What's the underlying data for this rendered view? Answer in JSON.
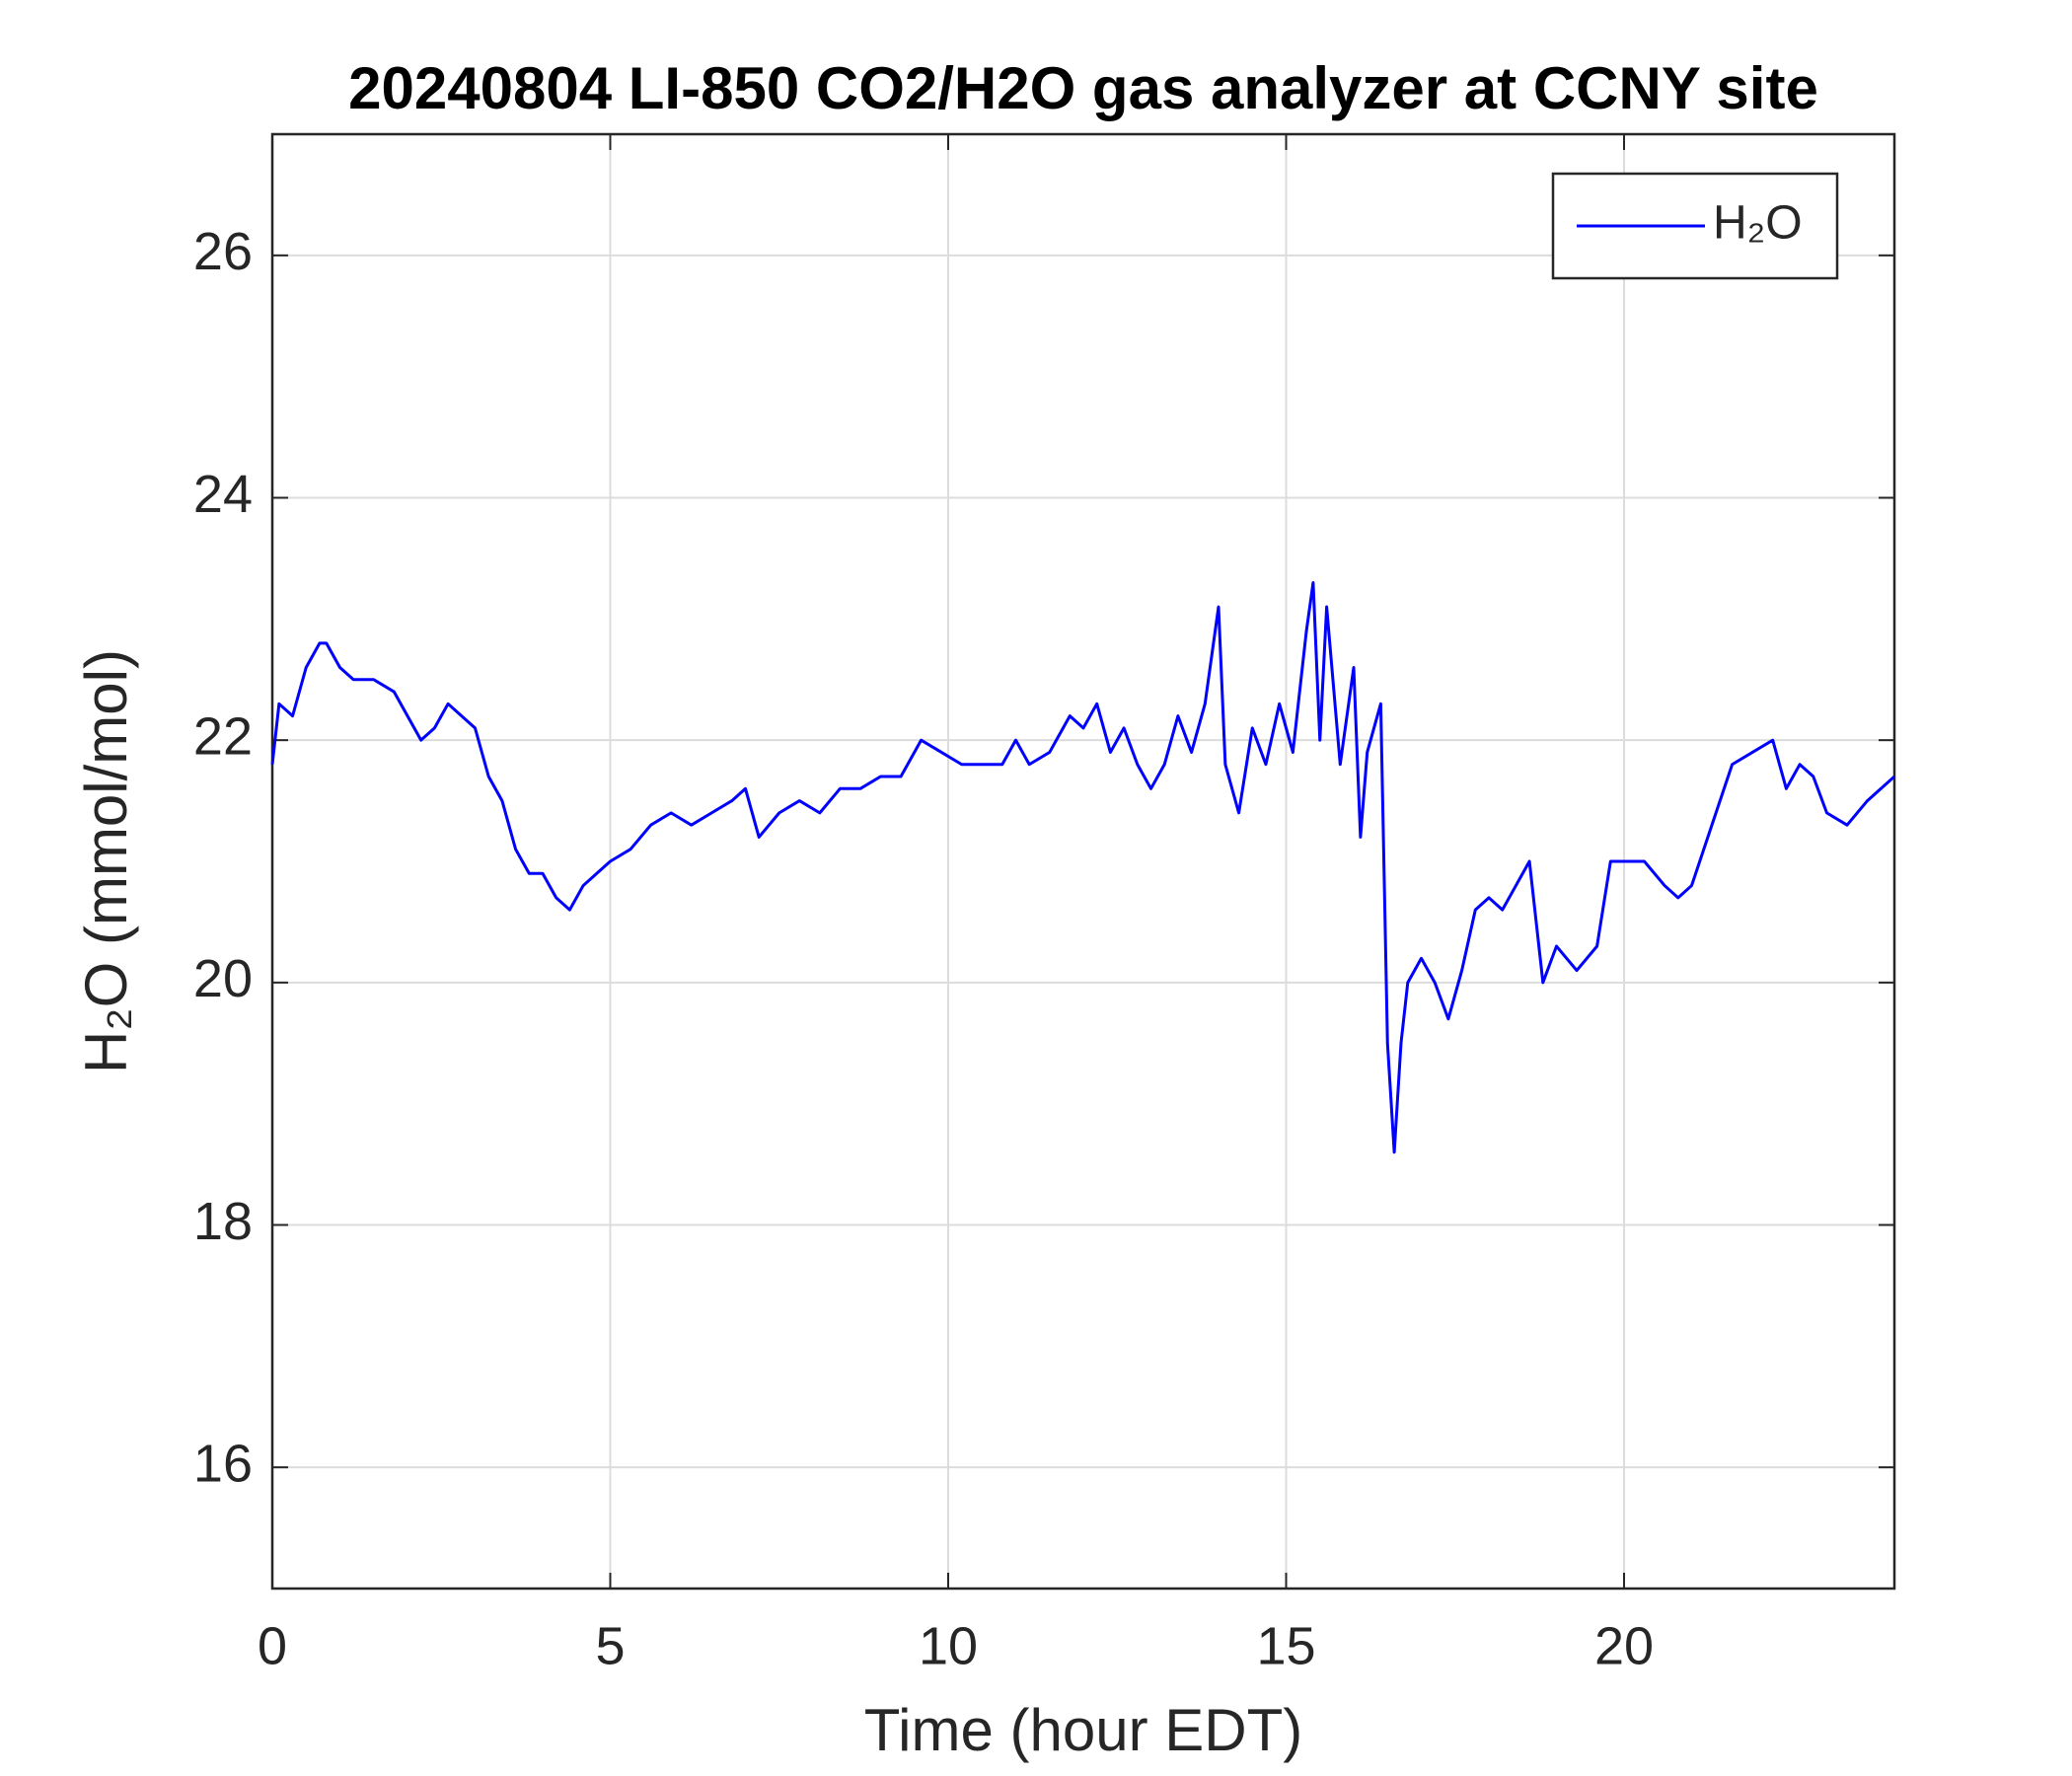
{
  "chart_data": {
    "type": "line",
    "title": "20240804 LI-850 CO2/H2O gas analyzer at CCNY site",
    "xlabel": "Time (hour EDT)",
    "ylabel": "H₂O (mmol/mol)",
    "xlim": [
      0,
      24
    ],
    "xticks": [
      0,
      5,
      10,
      15,
      20
    ],
    "ylim": [
      15,
      27
    ],
    "yticks": [
      16,
      18,
      20,
      22,
      24,
      26
    ],
    "grid": true,
    "legend": "upper right",
    "x": [
      0,
      0.1,
      0.3,
      0.5,
      0.7,
      0.8,
      1.0,
      1.2,
      1.5,
      1.8,
      2.0,
      2.2,
      2.4,
      2.6,
      2.8,
      3.0,
      3.2,
      3.4,
      3.6,
      3.8,
      4.0,
      4.2,
      4.4,
      4.6,
      4.8,
      5.0,
      5.3,
      5.6,
      5.9,
      6.2,
      6.5,
      6.8,
      7.0,
      7.2,
      7.5,
      7.8,
      8.1,
      8.4,
      8.7,
      9.0,
      9.3,
      9.6,
      9.9,
      10.2,
      10.5,
      10.8,
      11.0,
      11.2,
      11.5,
      11.8,
      12.0,
      12.2,
      12.4,
      12.6,
      12.8,
      13.0,
      13.2,
      13.4,
      13.6,
      13.8,
      14.0,
      14.1,
      14.3,
      14.5,
      14.7,
      14.9,
      15.1,
      15.3,
      15.4,
      15.5,
      15.6,
      15.8,
      16.0,
      16.1,
      16.2,
      16.4,
      16.5,
      16.6,
      16.7,
      16.8,
      17.0,
      17.2,
      17.4,
      17.6,
      17.8,
      18.0,
      18.2,
      18.4,
      18.6,
      18.8,
      19.0,
      19.3,
      19.6,
      19.8,
      20.0,
      20.3,
      20.6,
      20.8,
      21.0,
      21.3,
      21.6,
      21.9,
      22.2,
      22.4,
      22.6,
      22.8,
      23.0,
      23.3,
      23.6,
      24.0
    ],
    "series": [
      {
        "name": "H₂O",
        "color": "#0000ff",
        "values": [
          21.8,
          22.3,
          22.2,
          22.6,
          22.8,
          22.8,
          22.6,
          22.5,
          22.5,
          22.4,
          22.2,
          22.0,
          22.1,
          22.3,
          22.2,
          22.1,
          21.7,
          21.5,
          21.1,
          20.9,
          20.9,
          20.7,
          20.6,
          20.8,
          20.9,
          21.0,
          21.1,
          21.3,
          21.4,
          21.3,
          21.4,
          21.5,
          21.6,
          21.2,
          21.4,
          21.5,
          21.4,
          21.6,
          21.6,
          21.7,
          21.7,
          22.0,
          21.9,
          21.8,
          21.8,
          21.8,
          22.0,
          21.8,
          21.9,
          22.2,
          22.1,
          22.3,
          21.9,
          22.1,
          21.8,
          21.6,
          21.8,
          22.2,
          21.9,
          22.3,
          23.1,
          21.8,
          21.4,
          22.1,
          21.8,
          22.3,
          21.9,
          22.9,
          23.3,
          22.0,
          23.1,
          21.8,
          22.6,
          21.2,
          21.9,
          22.3,
          19.5,
          18.6,
          19.5,
          20.0,
          20.2,
          20.0,
          19.7,
          20.1,
          20.6,
          20.7,
          20.6,
          20.8,
          21.0,
          20.0,
          20.3,
          20.1,
          20.3,
          21.0,
          21.0,
          21.0,
          20.8,
          20.7,
          20.8,
          21.3,
          21.8,
          21.9,
          22.0,
          21.6,
          21.8,
          21.7,
          21.4,
          21.3,
          21.5,
          21.7
        ]
      }
    ]
  }
}
